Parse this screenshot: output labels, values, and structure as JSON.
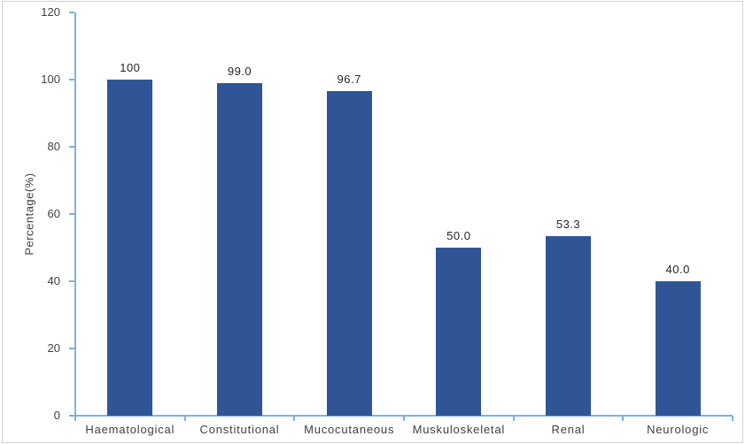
{
  "chart_data": {
    "type": "bar",
    "title": "",
    "categories": [
      "Haematological",
      "Constitutional",
      "Mucocutaneous",
      "Muskuloskeletal",
      "Renal",
      "Neurologic"
    ],
    "values": [
      100,
      99.0,
      96.7,
      50.0,
      53.3,
      40.0
    ],
    "value_labels": [
      "100",
      "99.0",
      "96.7",
      "50.0",
      "53.3",
      "40.0"
    ],
    "xlabel": "",
    "ylabel": "Percentage(%)",
    "ylim": [
      0,
      120
    ],
    "yticks": [
      0,
      20,
      40,
      60,
      80,
      100,
      120
    ],
    "grid": false,
    "legend": "none",
    "bar_color": "#2f5596",
    "axis_color": "#7fb0e0",
    "value_label_color": "#262626",
    "tick_label_color": "#404040"
  }
}
